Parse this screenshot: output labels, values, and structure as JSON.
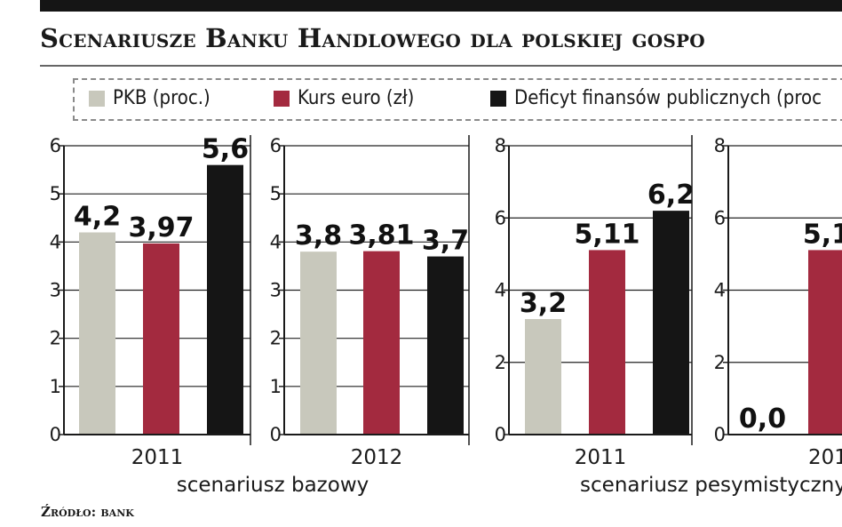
{
  "header": {
    "title": "Scenariusze Banku Handlowego dla polskiej gospo",
    "source": "Źródło: bank"
  },
  "legend": [
    {
      "label": "PKB (proc.)",
      "color": "#c8c8bc"
    },
    {
      "label": "Kurs euro (zł)",
      "color": "#a32a3f"
    },
    {
      "label": "Deficyt finansów publicznych (proc",
      "color": "#151515"
    }
  ],
  "groups": [
    {
      "label": "scenariusz bazowy"
    },
    {
      "label": "scenariusz pesymistyczny"
    }
  ],
  "chart_data": [
    {
      "type": "bar",
      "group": "scenariusz bazowy",
      "categories": [
        "2011"
      ],
      "series": [
        {
          "name": "PKB (proc.)",
          "values": [
            4.2
          ],
          "labels": [
            "4,2"
          ]
        },
        {
          "name": "Kurs euro (zł)",
          "values": [
            3.97
          ],
          "labels": [
            "3,97"
          ]
        },
        {
          "name": "Deficyt finansów publicznych (proc",
          "values": [
            5.6
          ],
          "labels": [
            "5,6"
          ]
        }
      ],
      "ylim": [
        0,
        6
      ],
      "yticks": [
        0,
        1,
        2,
        3,
        4,
        5,
        6
      ]
    },
    {
      "type": "bar",
      "group": "scenariusz bazowy",
      "categories": [
        "2012"
      ],
      "series": [
        {
          "name": "PKB (proc.)",
          "values": [
            3.8
          ],
          "labels": [
            "3,8"
          ]
        },
        {
          "name": "Kurs euro (zł)",
          "values": [
            3.81
          ],
          "labels": [
            "3,81"
          ]
        },
        {
          "name": "Deficyt finansów publicznych (proc",
          "values": [
            3.7
          ],
          "labels": [
            "3,7"
          ]
        }
      ],
      "ylim": [
        0,
        6
      ],
      "yticks": [
        0,
        1,
        2,
        3,
        4,
        5,
        6
      ]
    },
    {
      "type": "bar",
      "group": "scenariusz pesymistyczny",
      "categories": [
        "2011"
      ],
      "series": [
        {
          "name": "PKB (proc.)",
          "values": [
            3.2
          ],
          "labels": [
            "3,2"
          ]
        },
        {
          "name": "Kurs euro (zł)",
          "values": [
            5.11
          ],
          "labels": [
            "5,11"
          ]
        },
        {
          "name": "Deficyt finansów publicznych (proc",
          "values": [
            6.2
          ],
          "labels": [
            "6,2"
          ]
        }
      ],
      "ylim": [
        0,
        8
      ],
      "yticks": [
        0,
        2,
        4,
        6,
        8
      ]
    },
    {
      "type": "bar",
      "group": "scenariusz pesymistyczny",
      "categories": [
        "201"
      ],
      "series": [
        {
          "name": "PKB (proc.)",
          "values": [
            0.0
          ],
          "labels": [
            "0,0"
          ]
        },
        {
          "name": "Kurs euro (zł)",
          "values": [
            5.11
          ],
          "labels": [
            "5,1"
          ]
        }
      ],
      "ylim": [
        0,
        8
      ],
      "yticks": [
        0,
        2,
        4,
        6,
        8
      ]
    }
  ]
}
